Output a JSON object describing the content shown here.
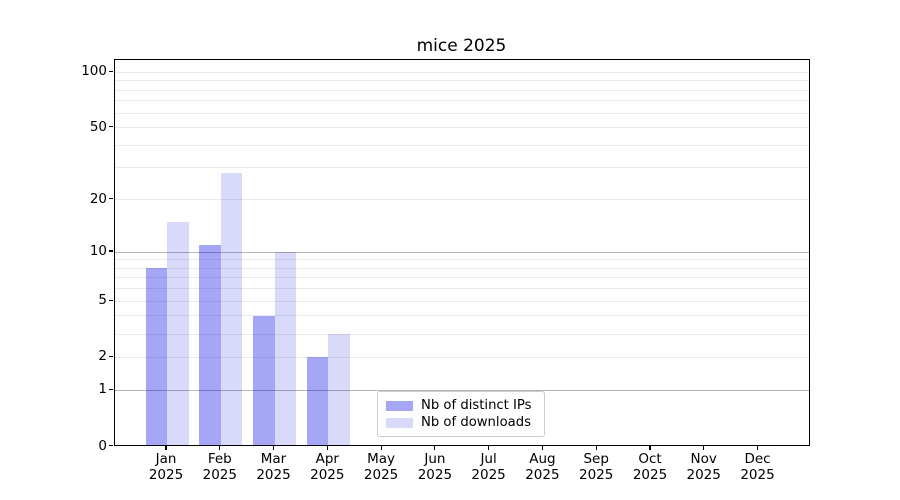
{
  "title": "mice 2025",
  "chart_data": {
    "type": "bar",
    "title": "mice 2025",
    "months": [
      "Jan",
      "Feb",
      "Mar",
      "Apr",
      "May",
      "Jun",
      "Jul",
      "Aug",
      "Sep",
      "Oct",
      "Nov",
      "Dec"
    ],
    "year": "2025",
    "categories": [
      "Jan 2025",
      "Feb 2025",
      "Mar 2025",
      "Apr 2025",
      "May 2025",
      "Jun 2025",
      "Jul 2025",
      "Aug 2025",
      "Sep 2025",
      "Oct 2025",
      "Nov 2025",
      "Dec 2025"
    ],
    "series": [
      {
        "name": "Nb of distinct IPs",
        "color": "rgba(0,0,230,0.35)",
        "values": [
          8,
          11,
          4,
          2,
          0,
          0,
          0,
          0,
          0,
          0,
          0,
          0
        ]
      },
      {
        "name": "Nb of downloads",
        "color": "rgba(0,0,220,0.15)",
        "values": [
          15,
          28,
          10,
          3,
          0,
          0,
          0,
          0,
          0,
          0,
          0,
          0
        ]
      }
    ],
    "yscale": "log1p",
    "ylim": [
      0,
      117
    ],
    "y_ticks": [
      100,
      50,
      20,
      10,
      5,
      2,
      1,
      0
    ],
    "y_major_gridlines": [
      1,
      10
    ],
    "y_minor_gridlines": [
      2,
      3,
      4,
      5,
      6,
      7,
      8,
      9,
      20,
      30,
      40,
      50,
      60,
      70,
      80,
      90,
      100
    ],
    "grid": true,
    "legend_position": "lower center",
    "colors": {
      "bar_distinct_ips": "rgba(0,0,230,0.35)",
      "bar_downloads": "rgba(0,0,220,0.15)",
      "major_grid": "#b6b6b6",
      "minor_grid": "#eaeaea",
      "spine": "#000000",
      "text": "#000000",
      "legend_border": "#cccccc"
    }
  }
}
